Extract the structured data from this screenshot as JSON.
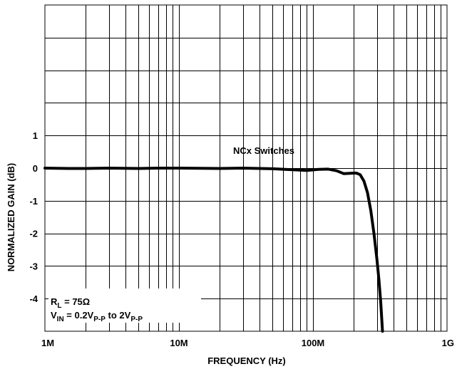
{
  "chart_data": {
    "type": "line",
    "title": "",
    "xlabel": "FREQUENCY (Hz)",
    "ylabel": "NORMALIZED GAIN (dB)",
    "x_scale": "log",
    "xlim": [
      1000000,
      1000000000
    ],
    "ylim": [
      -5,
      5
    ],
    "grid": true,
    "x_tick_labels": [
      {
        "value": 1000000,
        "label": "1M"
      },
      {
        "value": 10000000,
        "label": "10M"
      },
      {
        "value": 100000000,
        "label": "100M"
      },
      {
        "value": 1000000000,
        "label": "1G"
      }
    ],
    "y_tick_labels": [
      {
        "value": 1,
        "label": "1"
      },
      {
        "value": 0,
        "label": "0"
      },
      {
        "value": -1,
        "label": "-1"
      },
      {
        "value": -2,
        "label": "-2"
      },
      {
        "value": -3,
        "label": "-3"
      },
      {
        "value": -4,
        "label": "-4"
      }
    ],
    "series": [
      {
        "name": "NCx Switches",
        "color": "#000000",
        "x": [
          1000000,
          1500000,
          2000000,
          3000000,
          5000000,
          7000000,
          10000000,
          20000000,
          30000000,
          50000000,
          70000000,
          90000000,
          110000000,
          130000000,
          150000000,
          170000000,
          190000000,
          210000000,
          225000000,
          240000000,
          255000000,
          270000000,
          285000000,
          300000000,
          310000000,
          320000000,
          330000000
        ],
        "y": [
          0.0,
          -0.01,
          -0.01,
          0.0,
          -0.01,
          0.0,
          0.0,
          -0.01,
          0.0,
          -0.02,
          -0.05,
          -0.07,
          -0.04,
          -0.03,
          -0.08,
          -0.17,
          -0.16,
          -0.15,
          -0.2,
          -0.4,
          -0.75,
          -1.3,
          -2.0,
          -2.8,
          -3.4,
          -4.1,
          -5.0
        ]
      }
    ],
    "annotations": {
      "series_label": "NCx Switches",
      "rl_main": "R",
      "rl_sub": "L",
      "rl_rest": " = 75Ω",
      "vin_main": "V",
      "vin_sub": "IN",
      "vin_mid": " = 0.2V",
      "vin_sub2": "P-P",
      "vin_to": " to 2V",
      "vin_sub3": "P-P"
    }
  }
}
